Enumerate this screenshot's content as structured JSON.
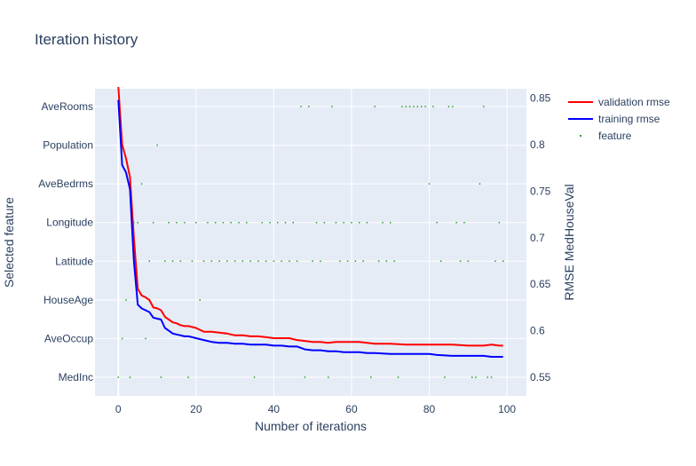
{
  "chart_data": {
    "type": "line",
    "title": "Iteration history",
    "xlabel": "Number of iterations",
    "ylabel_left": "Selected feature",
    "ylabel_right": "RMSE MedHouseVal",
    "xlim": [
      -6,
      105
    ],
    "xticks": [
      0,
      20,
      40,
      60,
      80,
      100
    ],
    "x_tick_labels": [
      "0",
      "20",
      "40",
      "60",
      "80",
      "100"
    ],
    "ylim_right": [
      0.53,
      0.86
    ],
    "yticks_right": [
      0.55,
      0.6,
      0.65,
      0.7,
      0.75,
      0.8,
      0.85
    ],
    "y_right_tick_labels": [
      "0.55",
      "0.6",
      "0.65",
      "0.7",
      "0.75",
      "0.8",
      "0.85"
    ],
    "categories_left": [
      "MedInc",
      "AveOccup",
      "HouseAge",
      "Latitude",
      "Longitude",
      "AveBedrms",
      "Population",
      "AveRooms"
    ],
    "grid": true,
    "legend_position": "top-right",
    "colors": {
      "validation": "#ff0000",
      "training": "#0000ff",
      "feature": "#2ca02c",
      "plot_bg": "#e5ecf6",
      "text": "#2a3f5f"
    },
    "series": [
      {
        "name": "validation rmse",
        "x": [
          0,
          1,
          2,
          3,
          4,
          5,
          6,
          7,
          8,
          9,
          10,
          11,
          12,
          13,
          14,
          15,
          16,
          17,
          18,
          19,
          20,
          22,
          24,
          26,
          28,
          30,
          32,
          34,
          36,
          38,
          40,
          42,
          44,
          46,
          48,
          50,
          52,
          54,
          56,
          58,
          60,
          62,
          64,
          66,
          70,
          74,
          78,
          80,
          82,
          86,
          90,
          92,
          94,
          96,
          98,
          99
        ],
        "y": [
          0.862,
          0.8,
          0.785,
          0.765,
          0.7,
          0.645,
          0.638,
          0.636,
          0.633,
          0.625,
          0.624,
          0.622,
          0.615,
          0.612,
          0.609,
          0.608,
          0.606,
          0.605,
          0.605,
          0.604,
          0.603,
          0.599,
          0.599,
          0.598,
          0.597,
          0.595,
          0.595,
          0.594,
          0.594,
          0.593,
          0.592,
          0.592,
          0.592,
          0.59,
          0.589,
          0.588,
          0.588,
          0.587,
          0.588,
          0.588,
          0.588,
          0.588,
          0.587,
          0.586,
          0.586,
          0.585,
          0.585,
          0.585,
          0.585,
          0.585,
          0.584,
          0.584,
          0.584,
          0.585,
          0.584,
          0.584
        ]
      },
      {
        "name": "training rmse",
        "x": [
          0,
          1,
          2,
          3,
          4,
          5,
          6,
          7,
          8,
          9,
          10,
          11,
          12,
          13,
          14,
          15,
          16,
          17,
          18,
          19,
          20,
          22,
          24,
          26,
          28,
          30,
          32,
          34,
          36,
          38,
          40,
          42,
          44,
          46,
          48,
          50,
          52,
          54,
          56,
          58,
          60,
          62,
          64,
          66,
          70,
          74,
          78,
          80,
          82,
          86,
          90,
          92,
          94,
          96,
          98,
          99
        ],
        "y": [
          0.848,
          0.778,
          0.77,
          0.752,
          0.675,
          0.628,
          0.624,
          0.622,
          0.62,
          0.614,
          0.613,
          0.612,
          0.603,
          0.6,
          0.597,
          0.596,
          0.595,
          0.594,
          0.594,
          0.593,
          0.592,
          0.59,
          0.588,
          0.587,
          0.587,
          0.586,
          0.586,
          0.585,
          0.585,
          0.585,
          0.584,
          0.584,
          0.583,
          0.583,
          0.58,
          0.579,
          0.579,
          0.578,
          0.578,
          0.577,
          0.577,
          0.577,
          0.576,
          0.576,
          0.575,
          0.575,
          0.575,
          0.575,
          0.574,
          0.573,
          0.573,
          0.573,
          0.573,
          0.572,
          0.572,
          0.572
        ]
      },
      {
        "name": "feature",
        "x": [
          0,
          1,
          2,
          3,
          4,
          5,
          6,
          7,
          8,
          9,
          10,
          11,
          12,
          13,
          14,
          15,
          16,
          17,
          18,
          19,
          20,
          21,
          22,
          23,
          24,
          25,
          26,
          27,
          28,
          29,
          30,
          31,
          32,
          33,
          34,
          35,
          36,
          37,
          38,
          39,
          40,
          41,
          42,
          43,
          44,
          45,
          46,
          47,
          48,
          49,
          50,
          51,
          52,
          53,
          54,
          55,
          56,
          57,
          58,
          59,
          60,
          61,
          62,
          63,
          64,
          65,
          66,
          67,
          68,
          69,
          70,
          71,
          72,
          73,
          74,
          75,
          76,
          77,
          78,
          79,
          80,
          81,
          82,
          83,
          84,
          85,
          86,
          87,
          88,
          89,
          90,
          91,
          92,
          93,
          94,
          95,
          96,
          97,
          98,
          99
        ],
        "y": [
          "MedInc",
          "AveOccup",
          "HouseAge",
          "MedInc",
          "Longitude",
          "Longitude",
          "AveBedrms",
          "AveOccup",
          "Latitude",
          "Longitude",
          "Population",
          "MedInc",
          "Latitude",
          "Longitude",
          "Latitude",
          "Longitude",
          "Latitude",
          "Longitude",
          "MedInc",
          "Latitude",
          "Longitude",
          "HouseAge",
          "Latitude",
          "Longitude",
          "Latitude",
          "Longitude",
          "Latitude",
          "Longitude",
          "Latitude",
          "Longitude",
          "Latitude",
          "Longitude",
          "Latitude",
          "Longitude",
          "Latitude",
          "MedInc",
          "Latitude",
          "Longitude",
          "Latitude",
          "Longitude",
          "Latitude",
          "Longitude",
          "Latitude",
          "Longitude",
          "Latitude",
          "Longitude",
          "Latitude",
          "AveRooms",
          "MedInc",
          "AveRooms",
          "Latitude",
          "Longitude",
          "Latitude",
          "Longitude",
          "MedInc",
          "AveRooms",
          "Longitude",
          "Latitude",
          "Longitude",
          "Latitude",
          "Longitude",
          "Latitude",
          "Longitude",
          "Latitude",
          "Longitude",
          "MedInc",
          "AveRooms",
          "Latitude",
          "Longitude",
          "Latitude",
          "Longitude",
          "Latitude",
          "MedInc",
          "AveRooms",
          "AveRooms",
          "AveRooms",
          "AveRooms",
          "AveRooms",
          "AveRooms",
          "AveRooms",
          "AveBedrms",
          "AveRooms",
          "Longitude",
          "Latitude",
          "MedInc",
          "AveRooms",
          "AveRooms",
          "Longitude",
          "Latitude",
          "Longitude",
          "Latitude",
          "MedInc",
          "MedInc",
          "AveBedrms",
          "AveRooms",
          "MedInc",
          "MedInc",
          "Latitude",
          "Longitude",
          "Latitude"
        ]
      }
    ]
  }
}
